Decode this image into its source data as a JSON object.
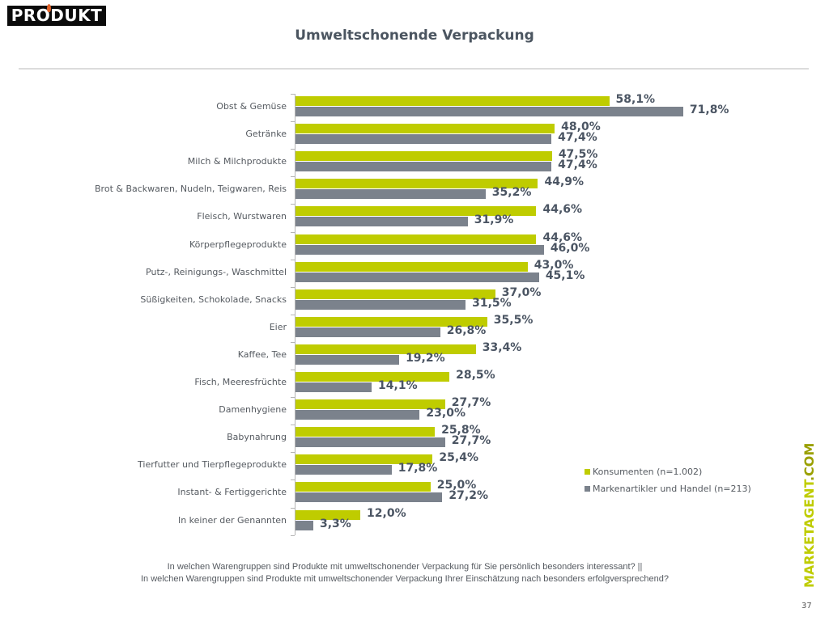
{
  "header": {
    "logo_text": "PRODUKT",
    "title": "Umweltschonende Verpackung"
  },
  "colors": {
    "konsumenten": "#bfcc00",
    "markenartikler": "#7b828c",
    "value_label": "#4b5563",
    "title": "#4b5560"
  },
  "chart_data": {
    "type": "bar",
    "orientation": "horizontal",
    "title": "Umweltschonende Verpackung",
    "xlabel": "",
    "ylabel": "",
    "xlim": [
      0,
      80
    ],
    "grid": false,
    "legend_position": "right",
    "categories": [
      "Obst & Gemüse",
      "Getränke",
      "Milch & Milchprodukte",
      "Brot & Backwaren, Nudeln, Teigwaren, Reis",
      "Fleisch, Wurstwaren",
      "Körperpflegeprodukte",
      "Putz-, Reinigungs-, Waschmittel",
      "Süßigkeiten, Schokolade, Snacks",
      "Eier",
      "Kaffee, Tee",
      "Fisch, Meeresfrüchte",
      "Damenhygiene",
      "Babynahrung",
      "Tierfutter und Tierpflegeprodukte",
      "Instant- & Fertiggerichte",
      "In keiner der Genannten"
    ],
    "series": [
      {
        "name": "Konsumenten (n=1.002)",
        "color": "#bfcc00",
        "values": [
          58.1,
          48.0,
          47.5,
          44.9,
          44.6,
          44.6,
          43.0,
          37.0,
          35.5,
          33.4,
          28.5,
          27.7,
          25.8,
          25.4,
          25.0,
          12.0
        ],
        "labels": [
          "58,1%",
          "48,0%",
          "47,5%",
          "44,9%",
          "44,6%",
          "44,6%",
          "43,0%",
          "37,0%",
          "35,5%",
          "33,4%",
          "28,5%",
          "27,7%",
          "25,8%",
          "25,4%",
          "25,0%",
          "12,0%"
        ]
      },
      {
        "name": "Markenartikler und Handel (n=213)",
        "color": "#7b828c",
        "values": [
          71.8,
          47.4,
          47.4,
          35.2,
          31.9,
          46.0,
          45.1,
          31.5,
          26.8,
          19.2,
          14.1,
          23.0,
          27.7,
          17.8,
          27.2,
          3.3
        ],
        "labels": [
          "71,8%",
          "47,4%",
          "47,4%",
          "35,2%",
          "31,9%",
          "46,0%",
          "45,1%",
          "31,5%",
          "26,8%",
          "19,2%",
          "14,1%",
          "23,0%",
          "27,7%",
          "17,8%",
          "27,2%",
          "3,3%"
        ]
      }
    ]
  },
  "legend": {
    "items": [
      {
        "label": "Konsumenten (n=1.002)",
        "color": "#bfcc00"
      },
      {
        "label": "Markenartikler und Handel (n=213)",
        "color": "#7b828c"
      }
    ]
  },
  "footer": {
    "question_line1": "In welchen Warengruppen sind Produkte mit umweltschonender Verpackung für Sie persönlich besonders interessant? ||",
    "question_line2": "In welchen Warengruppen sind Produkte mit umweltschonender Verpackung Ihrer Einschätzung nach besonders erfolgversprechend?",
    "brand_main": "MARKETAGENT",
    "brand_suffix": ".COM",
    "page_number": "37"
  }
}
